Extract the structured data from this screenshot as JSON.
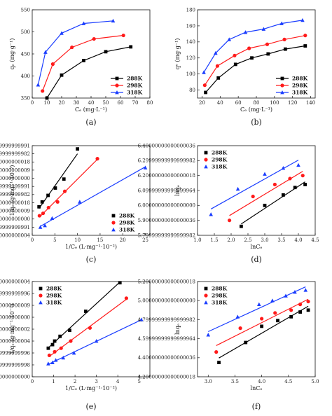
{
  "colors": {
    "288K": "#000000",
    "298K": "#ff1a1a",
    "318K": "#1a3dff",
    "axis": "#111111"
  },
  "chart_data": [
    {
      "id": "a",
      "panel_label": "(a)",
      "type": "line",
      "xlabel": "Cₑ (mg·L⁻¹)",
      "ylabel": "qₑ (mg·g⁻¹)",
      "xlim": [
        0,
        80
      ],
      "ylim": [
        350,
        550
      ],
      "xticks": [
        0,
        10,
        20,
        30,
        40,
        50,
        60,
        70,
        80
      ],
      "yticks": [
        350,
        400,
        450,
        500,
        550
      ],
      "legend_position": "bottom-right",
      "series": [
        {
          "name": "288K",
          "color_key": "288K",
          "marker": "square",
          "fit": "line",
          "points": [
            [
              10,
              350
            ],
            [
              20,
              402
            ],
            [
              35,
              435
            ],
            [
              50,
              455
            ],
            [
              67,
              466
            ]
          ]
        },
        {
          "name": "298K",
          "color_key": "298K",
          "marker": "circle",
          "fit": "line",
          "points": [
            [
              7,
              366
            ],
            [
              14,
              427
            ],
            [
              27,
              465
            ],
            [
              42,
              484
            ],
            [
              62,
              492
            ]
          ]
        },
        {
          "name": "318K",
          "color_key": "318K",
          "marker": "triangle",
          "fit": "line",
          "points": [
            [
              4,
              380
            ],
            [
              9,
              454
            ],
            [
              20,
              497
            ],
            [
              35,
              519
            ],
            [
              55,
              525
            ]
          ]
        }
      ]
    },
    {
      "id": "b",
      "panel_label": "(b)",
      "type": "line",
      "xlabel": "Cₑ (mg·L⁻¹)",
      "ylabel": "qᵉ (mg·g⁻¹)",
      "xlim": [
        15,
        145
      ],
      "ylim": [
        70,
        180
      ],
      "xticks": [
        20,
        40,
        60,
        80,
        100,
        120,
        140
      ],
      "yticks": [
        80,
        100,
        120,
        140,
        160,
        180
      ],
      "legend_position": "bottom-right",
      "series": [
        {
          "name": "288K",
          "color_key": "288K",
          "marker": "square",
          "fit": "line",
          "points": [
            [
              24,
              77
            ],
            [
              38,
              95
            ],
            [
              57,
              112
            ],
            [
              75,
              120
            ],
            [
              93,
              125
            ],
            [
              112,
              131
            ],
            [
              134,
              135
            ]
          ]
        },
        {
          "name": "298K",
          "color_key": "298K",
          "marker": "circle",
          "fit": "line",
          "points": [
            [
              23,
              86
            ],
            [
              37,
              110
            ],
            [
              56,
              123
            ],
            [
              72,
              132
            ],
            [
              92,
              137
            ],
            [
              111,
              143
            ],
            [
              134,
              148
            ]
          ]
        },
        {
          "name": "318K",
          "color_key": "318K",
          "marker": "triangle",
          "fit": "line",
          "points": [
            [
              22,
              102
            ],
            [
              35,
              126
            ],
            [
              50,
              143
            ],
            [
              68,
              152
            ],
            [
              88,
              156
            ],
            [
              108,
              163
            ],
            [
              131,
              167
            ]
          ]
        }
      ]
    },
    {
      "id": "c",
      "panel_label": "(c)",
      "type": "scatter",
      "xlabel": "1/Cₑ (L·mg⁻¹·10⁻²)",
      "ylabel": "1/qₑ (g·mg⁻¹·10⁻³)",
      "xlim": [
        0,
        26
      ],
      "ylim": [
        1.8,
        2.9
      ],
      "xticks": [
        0,
        5,
        10,
        15,
        20,
        25
      ],
      "yticks": [
        1.8,
        1.9,
        2.0,
        2.1,
        2.2,
        2.3,
        2.4,
        2.5,
        2.6,
        2.7,
        2.8,
        2.9
      ],
      "legend_position": "bottom-right",
      "series": [
        {
          "name": "288K",
          "color_key": "288K",
          "marker": "square",
          "fit": "regression",
          "points": [
            [
              1.5,
              2.15
            ],
            [
              2.2,
              2.21
            ],
            [
              3.5,
              2.29
            ],
            [
              5.1,
              2.38
            ],
            [
              7.0,
              2.49
            ],
            [
              10,
              2.86
            ]
          ]
        },
        {
          "name": "298K",
          "color_key": "298K",
          "marker": "circle",
          "fit": "regression",
          "points": [
            [
              1.6,
              2.04
            ],
            [
              2.4,
              2.07
            ],
            [
              3.6,
              2.14
            ],
            [
              5.6,
              2.21
            ],
            [
              7.2,
              2.34
            ],
            [
              14.4,
              2.74
            ]
          ]
        },
        {
          "name": "318K",
          "color_key": "318K",
          "marker": "triangle",
          "fit": "regression",
          "points": [
            [
              1.8,
              1.9
            ],
            [
              2.8,
              1.92
            ],
            [
              4.4,
              2.01
            ],
            [
              10.5,
              2.21
            ],
            [
              25,
              2.63
            ]
          ]
        }
      ]
    },
    {
      "id": "d",
      "panel_label": "(d)",
      "type": "scatter",
      "xlabel": "lnCₑ",
      "ylabel": "lnqₑ",
      "xlim": [
        1.0,
        4.5
      ],
      "ylim": [
        5.8,
        6.4
      ],
      "xticks": [
        1.0,
        1.5,
        2.0,
        2.5,
        3.0,
        3.5,
        4.0,
        4.5
      ],
      "yticks": [
        5.8,
        5.9,
        6.0,
        6.1,
        6.2,
        6.3,
        6.4
      ],
      "legend_position": "top-left",
      "series": [
        {
          "name": "288K",
          "color_key": "288K",
          "marker": "square",
          "fit": "regression",
          "points": [
            [
              2.3,
              5.86
            ],
            [
              3.0,
              6.0
            ],
            [
              3.55,
              6.07
            ],
            [
              3.9,
              6.12
            ],
            [
              4.2,
              6.14
            ]
          ]
        },
        {
          "name": "298K",
          "color_key": "298K",
          "marker": "circle",
          "fit": "regression",
          "points": [
            [
              1.95,
              5.9
            ],
            [
              2.65,
              6.06
            ],
            [
              3.3,
              6.14
            ],
            [
              3.75,
              6.18
            ],
            [
              4.13,
              6.2
            ]
          ]
        },
        {
          "name": "318K",
          "color_key": "318K",
          "marker": "triangle",
          "fit": "regression",
          "points": [
            [
              1.4,
              5.94
            ],
            [
              2.2,
              6.11
            ],
            [
              3.0,
              6.21
            ],
            [
              3.55,
              6.25
            ],
            [
              4.0,
              6.27
            ]
          ]
        }
      ]
    },
    {
      "id": "e",
      "panel_label": "(e)",
      "type": "scatter",
      "xlabel": "1/Cₑ (L·mg⁻¹·10⁻²)",
      "ylabel": "1/qₑ (g·mg⁻¹·10⁻²)",
      "xlim": [
        0,
        5.5
      ],
      "ylim": [
        0.5,
        1.3
      ],
      "xticks": [
        0,
        1,
        2,
        3,
        4,
        5
      ],
      "yticks": [
        0.5,
        0.6,
        0.7,
        0.8,
        0.9,
        1.0,
        1.1,
        1.2,
        1.3
      ],
      "legend_position": "top-left",
      "series": [
        {
          "name": "288K",
          "color_key": "288K",
          "marker": "square",
          "fit": "regression",
          "points": [
            [
              0.75,
              0.74
            ],
            [
              0.95,
              0.77
            ],
            [
              1.05,
              0.8
            ],
            [
              1.3,
              0.84
            ],
            [
              1.75,
              0.89
            ],
            [
              2.5,
              1.05
            ],
            [
              4.1,
              1.29
            ]
          ]
        },
        {
          "name": "298K",
          "color_key": "298K",
          "marker": "circle",
          "fit": "regression",
          "points": [
            [
              0.8,
              0.68
            ],
            [
              1.05,
              0.71
            ],
            [
              1.35,
              0.74
            ],
            [
              1.8,
              0.8
            ],
            [
              2.7,
              0.91
            ],
            [
              4.4,
              1.16
            ]
          ]
        },
        {
          "name": "318K",
          "color_key": "318K",
          "marker": "triangle",
          "fit": "regression",
          "points": [
            [
              0.75,
              0.61
            ],
            [
              0.95,
              0.62
            ],
            [
              1.1,
              0.64
            ],
            [
              1.45,
              0.66
            ],
            [
              1.95,
              0.7
            ],
            [
              3.0,
              0.8
            ],
            [
              5.1,
              0.98
            ]
          ]
        }
      ]
    },
    {
      "id": "f",
      "panel_label": "(f)",
      "type": "scatter",
      "xlabel": "lnCₑ",
      "ylabel": "lnqₑ",
      "xlim": [
        2.8,
        5.0
      ],
      "ylim": [
        4.2,
        5.2
      ],
      "xticks": [
        3.0,
        3.5,
        4.0,
        4.5,
        5.0
      ],
      "yticks": [
        4.2,
        4.4,
        4.6,
        4.8,
        5.0,
        5.2
      ],
      "legend_position": "top-left",
      "series": [
        {
          "name": "288K",
          "color_key": "288K",
          "marker": "square",
          "fit": "regression",
          "points": [
            [
              3.2,
              4.35
            ],
            [
              3.7,
              4.56
            ],
            [
              4.0,
              4.73
            ],
            [
              4.3,
              4.79
            ],
            [
              4.55,
              4.83
            ],
            [
              4.72,
              4.88
            ],
            [
              4.87,
              4.9
            ]
          ]
        },
        {
          "name": "298K",
          "color_key": "298K",
          "marker": "circle",
          "fit": "regression",
          "points": [
            [
              3.15,
              4.46
            ],
            [
              3.6,
              4.71
            ],
            [
              4.0,
              4.81
            ],
            [
              4.25,
              4.87
            ],
            [
              4.55,
              4.9
            ],
            [
              4.72,
              4.96
            ],
            [
              4.87,
              4.99
            ]
          ]
        },
        {
          "name": "318K",
          "color_key": "318K",
          "marker": "triangle",
          "fit": "regression",
          "points": [
            [
              3.0,
              4.64
            ],
            [
              3.55,
              4.83
            ],
            [
              3.95,
              4.96
            ],
            [
              4.2,
              5.0
            ],
            [
              4.45,
              5.05
            ],
            [
              4.62,
              5.09
            ],
            [
              4.82,
              5.11
            ]
          ]
        }
      ]
    }
  ]
}
